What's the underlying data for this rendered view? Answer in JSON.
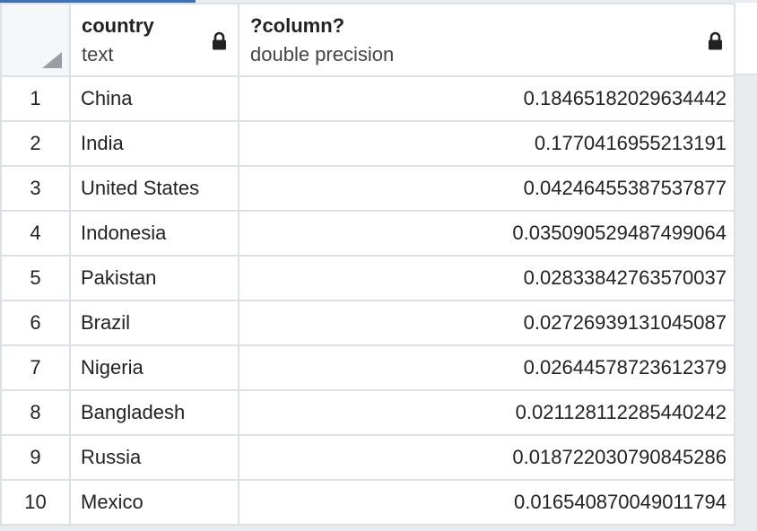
{
  "columns": [
    {
      "name": "",
      "type": ""
    },
    {
      "name": "country",
      "type": "text",
      "icon": "lock-icon"
    },
    {
      "name": "?column?",
      "type": "double precision",
      "icon": "lock-icon"
    }
  ],
  "rows": [
    {
      "num": "1",
      "country": "China",
      "value": "0.18465182029634442"
    },
    {
      "num": "2",
      "country": "India",
      "value": "0.1770416955213191"
    },
    {
      "num": "3",
      "country": "United States",
      "value": "0.04246455387537877"
    },
    {
      "num": "4",
      "country": "Indonesia",
      "value": "0.035090529487499064"
    },
    {
      "num": "5",
      "country": "Pakistan",
      "value": "0.02833842763570037"
    },
    {
      "num": "6",
      "country": "Brazil",
      "value": "0.02726939131045087"
    },
    {
      "num": "7",
      "country": "Nigeria",
      "value": "0.02644578723612379"
    },
    {
      "num": "8",
      "country": "Bangladesh",
      "value": "0.021128112285440242"
    },
    {
      "num": "9",
      "country": "Russia",
      "value": "0.018722030790845286"
    },
    {
      "num": "10",
      "country": "Mexico",
      "value": "0.016540870049011794"
    }
  ],
  "colors": {
    "accent": "#3b72b8",
    "border": "#dde0e4",
    "background": "#e9ebee"
  }
}
